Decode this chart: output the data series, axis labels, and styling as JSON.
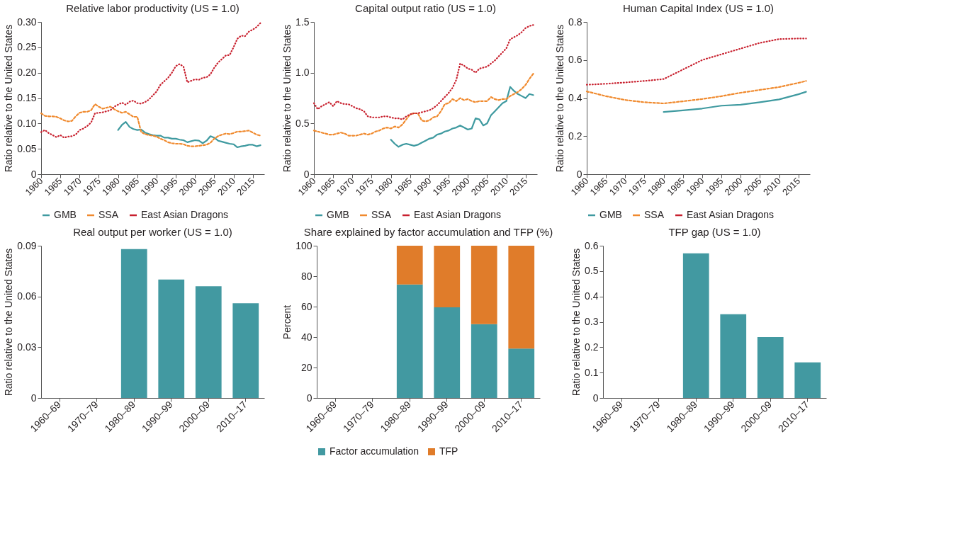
{
  "chart_data": [
    {
      "type": "line",
      "title": "Relative labor productivity (US = 1.0)",
      "ylabel": "Ratio relative to the United States",
      "xlim": [
        1960,
        2018
      ],
      "xticks": [
        1960,
        1965,
        1970,
        1975,
        1980,
        1985,
        1990,
        1995,
        2000,
        2005,
        2010,
        2015
      ],
      "ylim": [
        0,
        0.3
      ],
      "yticks": [
        0,
        0.05,
        {
          "value": 0.1,
          "label": "0.10"
        },
        0.15,
        {
          "value": 0.2,
          "label": "0.20"
        },
        0.25,
        {
          "value": 0.3,
          "label": "0.30"
        }
      ],
      "legend": "bottom",
      "grid": false,
      "series": [
        {
          "name": "GMB",
          "color": "#3f9aa0",
          "line_style": "solid",
          "x": [
            1980,
            1981,
            1982,
            1983,
            1984,
            1985,
            1986,
            1987,
            1988,
            1989,
            1990,
            1991,
            1992,
            1993,
            1994,
            1995,
            1996,
            1997,
            1998,
            1999,
            2000,
            2001,
            2002,
            2003,
            2004,
            2005,
            2006,
            2007,
            2008,
            2009,
            2010,
            2011,
            2012,
            2013,
            2014,
            2015,
            2016,
            2017
          ],
          "values": [
            0.087,
            0.097,
            0.103,
            0.093,
            0.089,
            0.087,
            0.088,
            0.082,
            0.079,
            0.077,
            0.076,
            0.076,
            0.072,
            0.072,
            0.07,
            0.07,
            0.068,
            0.067,
            0.063,
            0.065,
            0.067,
            0.066,
            0.061,
            0.066,
            0.075,
            0.072,
            0.066,
            0.064,
            0.062,
            0.06,
            0.059,
            0.053,
            0.055,
            0.056,
            0.058,
            0.058,
            0.055,
            0.057
          ]
        },
        {
          "name": "SSA",
          "color": "#f08a2e",
          "line_style": "dashed",
          "x": [
            1960,
            1961,
            1962,
            1963,
            1964,
            1965,
            1966,
            1967,
            1968,
            1969,
            1970,
            1971,
            1972,
            1973,
            1974,
            1975,
            1976,
            1977,
            1978,
            1979,
            1980,
            1981,
            1982,
            1983,
            1984,
            1985,
            1986,
            1987,
            1988,
            1989,
            1990,
            1991,
            1992,
            1993,
            1994,
            1995,
            1996,
            1997,
            1998,
            1999,
            2000,
            2001,
            2002,
            2003,
            2004,
            2005,
            2006,
            2007,
            2008,
            2009,
            2010,
            2011,
            2012,
            2013,
            2014,
            2015,
            2016,
            2017
          ],
          "values": [
            0.12,
            0.115,
            0.114,
            0.114,
            0.113,
            0.11,
            0.106,
            0.104,
            0.105,
            0.114,
            0.121,
            0.123,
            0.123,
            0.126,
            0.138,
            0.133,
            0.129,
            0.131,
            0.133,
            0.128,
            0.124,
            0.121,
            0.123,
            0.118,
            0.113,
            0.113,
            0.083,
            0.079,
            0.077,
            0.076,
            0.074,
            0.07,
            0.067,
            0.063,
            0.061,
            0.06,
            0.06,
            0.059,
            0.056,
            0.055,
            0.055,
            0.056,
            0.057,
            0.058,
            0.062,
            0.07,
            0.075,
            0.078,
            0.08,
            0.079,
            0.081,
            0.084,
            0.084,
            0.085,
            0.086,
            0.082,
            0.078,
            0.076
          ]
        },
        {
          "name": "East Asian Dragons",
          "color": "#c8202e",
          "line_style": "dotted",
          "x": [
            1960,
            1961,
            1962,
            1963,
            1964,
            1965,
            1966,
            1967,
            1968,
            1969,
            1970,
            1971,
            1972,
            1973,
            1974,
            1975,
            1976,
            1977,
            1978,
            1979,
            1980,
            1981,
            1982,
            1983,
            1984,
            1985,
            1986,
            1987,
            1988,
            1989,
            1990,
            1991,
            1992,
            1993,
            1994,
            1995,
            1996,
            1997,
            1998,
            1999,
            2000,
            2001,
            2002,
            2003,
            2004,
            2005,
            2006,
            2007,
            2008,
            2009,
            2010,
            2011,
            2012,
            2013,
            2014,
            2015,
            2016,
            2017
          ],
          "values": [
            0.083,
            0.087,
            0.081,
            0.077,
            0.073,
            0.077,
            0.072,
            0.074,
            0.075,
            0.078,
            0.087,
            0.09,
            0.095,
            0.102,
            0.12,
            0.121,
            0.122,
            0.124,
            0.126,
            0.133,
            0.137,
            0.141,
            0.137,
            0.143,
            0.145,
            0.14,
            0.139,
            0.142,
            0.147,
            0.155,
            0.163,
            0.176,
            0.183,
            0.19,
            0.2,
            0.213,
            0.217,
            0.212,
            0.181,
            0.184,
            0.187,
            0.186,
            0.19,
            0.191,
            0.197,
            0.21,
            0.22,
            0.227,
            0.234,
            0.235,
            0.25,
            0.267,
            0.273,
            0.272,
            0.281,
            0.285,
            0.29,
            0.298
          ]
        }
      ]
    },
    {
      "type": "line",
      "title": "Capital output ratio (US = 1.0)",
      "ylabel": "Ratio relative to the United States",
      "xlim": [
        1960,
        2018
      ],
      "xticks": [
        1960,
        1965,
        1970,
        1975,
        1980,
        1985,
        1990,
        1995,
        2000,
        2005,
        2010,
        2015
      ],
      "ylim": [
        0,
        1.5
      ],
      "yticks": [
        0,
        0.5,
        {
          "value": 1,
          "label": "1.0"
        },
        1.5
      ],
      "legend": "bottom",
      "grid": false,
      "series": [
        {
          "name": "GMB",
          "color": "#3f9aa0",
          "line_style": "solid",
          "x": [
            1980,
            1981,
            1982,
            1983,
            1984,
            1985,
            1986,
            1987,
            1988,
            1989,
            1990,
            1991,
            1992,
            1993,
            1994,
            1995,
            1996,
            1997,
            1998,
            1999,
            2000,
            2001,
            2002,
            2003,
            2004,
            2005,
            2006,
            2007,
            2008,
            2009,
            2010,
            2011,
            2012,
            2013,
            2014,
            2015,
            2016,
            2017
          ],
          "values": [
            0.34,
            0.3,
            0.27,
            0.29,
            0.3,
            0.29,
            0.28,
            0.29,
            0.31,
            0.33,
            0.35,
            0.36,
            0.39,
            0.4,
            0.42,
            0.43,
            0.45,
            0.46,
            0.48,
            0.46,
            0.44,
            0.45,
            0.55,
            0.54,
            0.48,
            0.5,
            0.58,
            0.62,
            0.66,
            0.7,
            0.72,
            0.86,
            0.82,
            0.79,
            0.77,
            0.75,
            0.79,
            0.78
          ]
        },
        {
          "name": "SSA",
          "color": "#f08a2e",
          "line_style": "dashed",
          "x": [
            1960,
            1961,
            1962,
            1963,
            1964,
            1965,
            1966,
            1967,
            1968,
            1969,
            1970,
            1971,
            1972,
            1973,
            1974,
            1975,
            1976,
            1977,
            1978,
            1979,
            1980,
            1981,
            1982,
            1983,
            1984,
            1985,
            1986,
            1987,
            1988,
            1989,
            1990,
            1991,
            1992,
            1993,
            1994,
            1995,
            1996,
            1997,
            1998,
            1999,
            2000,
            2001,
            2002,
            2003,
            2004,
            2005,
            2006,
            2007,
            2008,
            2009,
            2010,
            2011,
            2012,
            2013,
            2014,
            2015,
            2016,
            2017
          ],
          "values": [
            0.43,
            0.42,
            0.41,
            0.4,
            0.39,
            0.39,
            0.4,
            0.41,
            0.4,
            0.38,
            0.38,
            0.38,
            0.39,
            0.4,
            0.39,
            0.4,
            0.42,
            0.43,
            0.45,
            0.46,
            0.45,
            0.47,
            0.46,
            0.49,
            0.54,
            0.59,
            0.6,
            0.6,
            0.53,
            0.52,
            0.53,
            0.56,
            0.57,
            0.62,
            0.69,
            0.7,
            0.74,
            0.72,
            0.75,
            0.73,
            0.74,
            0.72,
            0.71,
            0.72,
            0.72,
            0.72,
            0.76,
            0.74,
            0.73,
            0.74,
            0.74,
            0.77,
            0.79,
            0.81,
            0.84,
            0.88,
            0.94,
            0.99
          ]
        },
        {
          "name": "East Asian Dragons",
          "color": "#c8202e",
          "line_style": "dotted",
          "x": [
            1960,
            1961,
            1962,
            1963,
            1964,
            1965,
            1966,
            1967,
            1968,
            1969,
            1970,
            1971,
            1972,
            1973,
            1974,
            1975,
            1976,
            1977,
            1978,
            1979,
            1980,
            1981,
            1982,
            1983,
            1984,
            1985,
            1986,
            1987,
            1988,
            1989,
            1990,
            1991,
            1992,
            1993,
            1994,
            1995,
            1996,
            1997,
            1998,
            1999,
            2000,
            2001,
            2002,
            2003,
            2004,
            2005,
            2006,
            2007,
            2008,
            2009,
            2010,
            2011,
            2012,
            2013,
            2014,
            2015,
            2016,
            2017
          ],
          "values": [
            0.7,
            0.64,
            0.67,
            0.69,
            0.71,
            0.67,
            0.72,
            0.7,
            0.69,
            0.69,
            0.67,
            0.65,
            0.64,
            0.62,
            0.57,
            0.56,
            0.56,
            0.56,
            0.57,
            0.57,
            0.56,
            0.55,
            0.55,
            0.54,
            0.57,
            0.59,
            0.6,
            0.6,
            0.61,
            0.62,
            0.63,
            0.65,
            0.68,
            0.72,
            0.76,
            0.8,
            0.85,
            0.93,
            1.09,
            1.07,
            1.04,
            1.03,
            1.0,
            1.04,
            1.05,
            1.06,
            1.09,
            1.12,
            1.16,
            1.2,
            1.24,
            1.33,
            1.35,
            1.37,
            1.4,
            1.44,
            1.46,
            1.47
          ]
        }
      ]
    },
    {
      "type": "line",
      "title": "Human Capital Index (US = 1.0)",
      "ylabel": "Ratio relative to the United States",
      "xlim": [
        1960,
        2018
      ],
      "xticks": [
        1960,
        1965,
        1970,
        1975,
        1980,
        1985,
        1990,
        1995,
        2000,
        2005,
        2010,
        2015
      ],
      "ylim": [
        0,
        0.8
      ],
      "yticks": [
        0,
        0.2,
        0.4,
        0.6,
        0.8
      ],
      "legend": "bottom",
      "grid": false,
      "series": [
        {
          "name": "GMB",
          "color": "#3f9aa0",
          "line_style": "solid",
          "x": [
            1980,
            1985,
            1990,
            1995,
            2000,
            2005,
            2010,
            2015,
            2017
          ],
          "values": [
            0.327,
            0.335,
            0.345,
            0.36,
            0.365,
            0.378,
            0.393,
            0.42,
            0.433
          ]
        },
        {
          "name": "SSA",
          "color": "#f08a2e",
          "line_style": "dashed",
          "x": [
            1960,
            1965,
            1970,
            1975,
            1980,
            1985,
            1990,
            1995,
            2000,
            2005,
            2010,
            2015,
            2017
          ],
          "values": [
            0.435,
            0.41,
            0.39,
            0.378,
            0.372,
            0.383,
            0.395,
            0.41,
            0.428,
            0.443,
            0.458,
            0.48,
            0.49
          ]
        },
        {
          "name": "East Asian Dragons",
          "color": "#c8202e",
          "line_style": "dotted",
          "x": [
            1960,
            1965,
            1970,
            1975,
            1980,
            1985,
            1990,
            1995,
            2000,
            2005,
            2010,
            2015,
            2017
          ],
          "values": [
            0.47,
            0.475,
            0.482,
            0.49,
            0.5,
            0.55,
            0.6,
            0.63,
            0.66,
            0.69,
            0.71,
            0.713,
            0.713
          ]
        }
      ]
    },
    {
      "type": "bar",
      "title": "Real output per worker (US = 1.0)",
      "ylabel": "Ratio relative to the United States",
      "categories": [
        "1960–69",
        "1970–79",
        "1980–89",
        "1990–99",
        "2000–09",
        "2010–17"
      ],
      "values": [
        null,
        null,
        0.088,
        0.07,
        0.066,
        0.056
      ],
      "color": "#4299a1",
      "ylim": [
        0,
        0.09
      ],
      "yticks": [
        0,
        0.03,
        0.06,
        0.09
      ],
      "grid": false
    },
    {
      "type": "bar",
      "title": "Share explained by factor accumulation and TFP (%)",
      "ylabel": "Percent",
      "categories": [
        "1960–69",
        "1970–79",
        "1980–89",
        "1990–99",
        "2000–09",
        "2010–17"
      ],
      "stacked": true,
      "ylim": [
        0,
        100
      ],
      "yticks": [
        0,
        20,
        40,
        60,
        80,
        100
      ],
      "legend": "bottom",
      "grid": false,
      "series": [
        {
          "name": "Factor accumulation",
          "color": "#4299a1",
          "values": [
            null,
            null,
            74.5,
            59.5,
            48.5,
            32.5
          ]
        },
        {
          "name": "TFP",
          "color": "#e07c2a",
          "values": [
            null,
            null,
            25.5,
            40.5,
            51.5,
            67.5
          ]
        }
      ]
    },
    {
      "type": "bar",
      "title": "TFP gap (US = 1.0)",
      "ylabel": "Ratio relative to the United States",
      "categories": [
        "1960–69",
        "1970–79",
        "1980–89",
        "1990–99",
        "2000–09",
        "2010–17"
      ],
      "values": [
        null,
        null,
        0.57,
        0.33,
        0.24,
        0.14
      ],
      "color": "#4299a1",
      "ylim": [
        0,
        0.6
      ],
      "yticks": [
        0,
        0.1,
        0.2,
        0.3,
        0.4,
        0.5,
        0.6
      ],
      "grid": false
    }
  ]
}
